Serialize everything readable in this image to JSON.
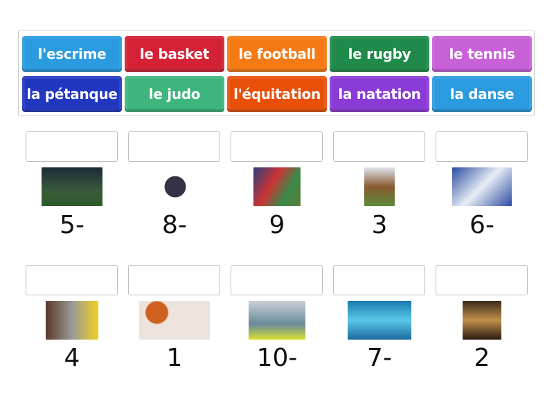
{
  "tiles": [
    {
      "label": "l'escrime",
      "color": "#2a9be0"
    },
    {
      "label": "le basket",
      "color": "#d42135"
    },
    {
      "label": "le football",
      "color": "#f57a14"
    },
    {
      "label": "le rugby",
      "color": "#1f8a4a"
    },
    {
      "label": "le tennis",
      "color": "#c860d8"
    },
    {
      "label": "la pétanque",
      "color": "#2237c0"
    },
    {
      "label": "le judo",
      "color": "#3db57c"
    },
    {
      "label": "l'équitation",
      "color": "#e8500a"
    },
    {
      "label": "la natation",
      "color": "#8a3bd6"
    },
    {
      "label": "la danse",
      "color": "#2a9be0"
    }
  ],
  "items": [
    {
      "number": "5-",
      "image": "football-photo"
    },
    {
      "number": "8-",
      "image": "petanque-photo"
    },
    {
      "number": "9",
      "image": "rugby-photo"
    },
    {
      "number": "3",
      "image": "equitation-photo"
    },
    {
      "number": "6-",
      "image": "judo-photo"
    },
    {
      "number": "4",
      "image": "escrime-photo"
    },
    {
      "number": "1",
      "image": "basket-photo"
    },
    {
      "number": "10-",
      "image": "tennis-photo"
    },
    {
      "number": "7-",
      "image": "natation-photo"
    },
    {
      "number": "2",
      "image": "danse-photo"
    }
  ]
}
